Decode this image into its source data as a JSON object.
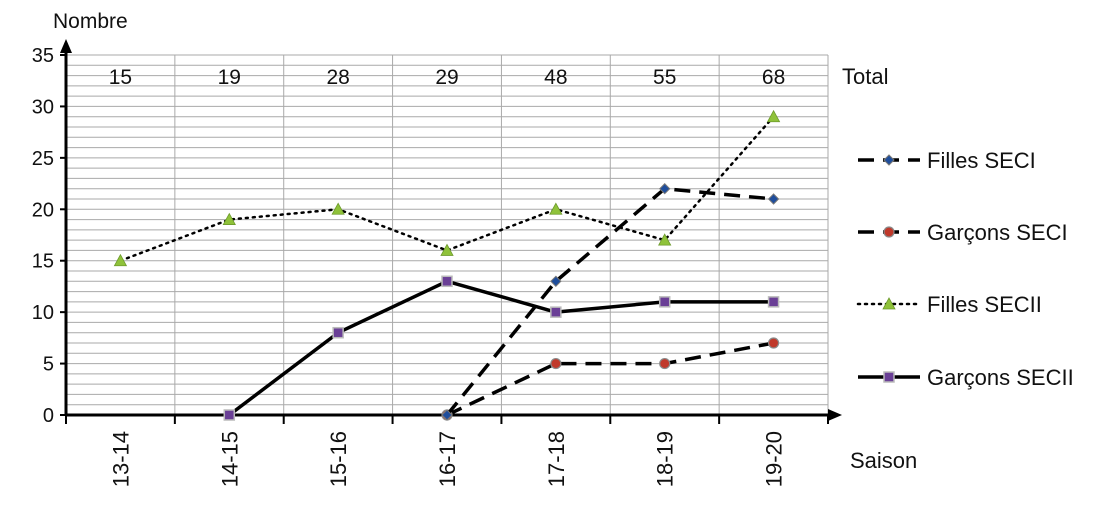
{
  "chart_data": {
    "type": "line",
    "ylabel": "Nombre",
    "xlabel": "Saison",
    "ylim": [
      0,
      35
    ],
    "yticks": [
      "0",
      "5",
      "10",
      "15",
      "20",
      "25",
      "30",
      "35"
    ],
    "categories": [
      "13-14",
      "14-15",
      "15-16",
      "16-17",
      "17-18",
      "18-19",
      "19-20"
    ],
    "totals": {
      "label": "Total",
      "values": [
        "15",
        "19",
        "28",
        "29",
        "48",
        "55",
        "68"
      ]
    },
    "grid": true,
    "legend_position": "right",
    "series": [
      {
        "name": "Filles SECI",
        "values": [
          null,
          null,
          null,
          0,
          13,
          22,
          21
        ],
        "line_style": "dashed",
        "marker": "diamond",
        "marker_color": "#1f4e9c"
      },
      {
        "name": "Garçons SECI",
        "values": [
          null,
          null,
          null,
          0,
          5,
          5,
          7
        ],
        "line_style": "dashed",
        "marker": "circle",
        "marker_color": "#c0392b"
      },
      {
        "name": "Filles SECII",
        "values": [
          15,
          19,
          20,
          16,
          20,
          17,
          29
        ],
        "line_style": "dotted",
        "marker": "triangle",
        "marker_color": "#8fc23a"
      },
      {
        "name": "Garçons SECII",
        "values": [
          null,
          0,
          8,
          13,
          10,
          11,
          11
        ],
        "line_style": "solid",
        "marker": "square",
        "marker_color": "#6a3f96"
      }
    ]
  }
}
